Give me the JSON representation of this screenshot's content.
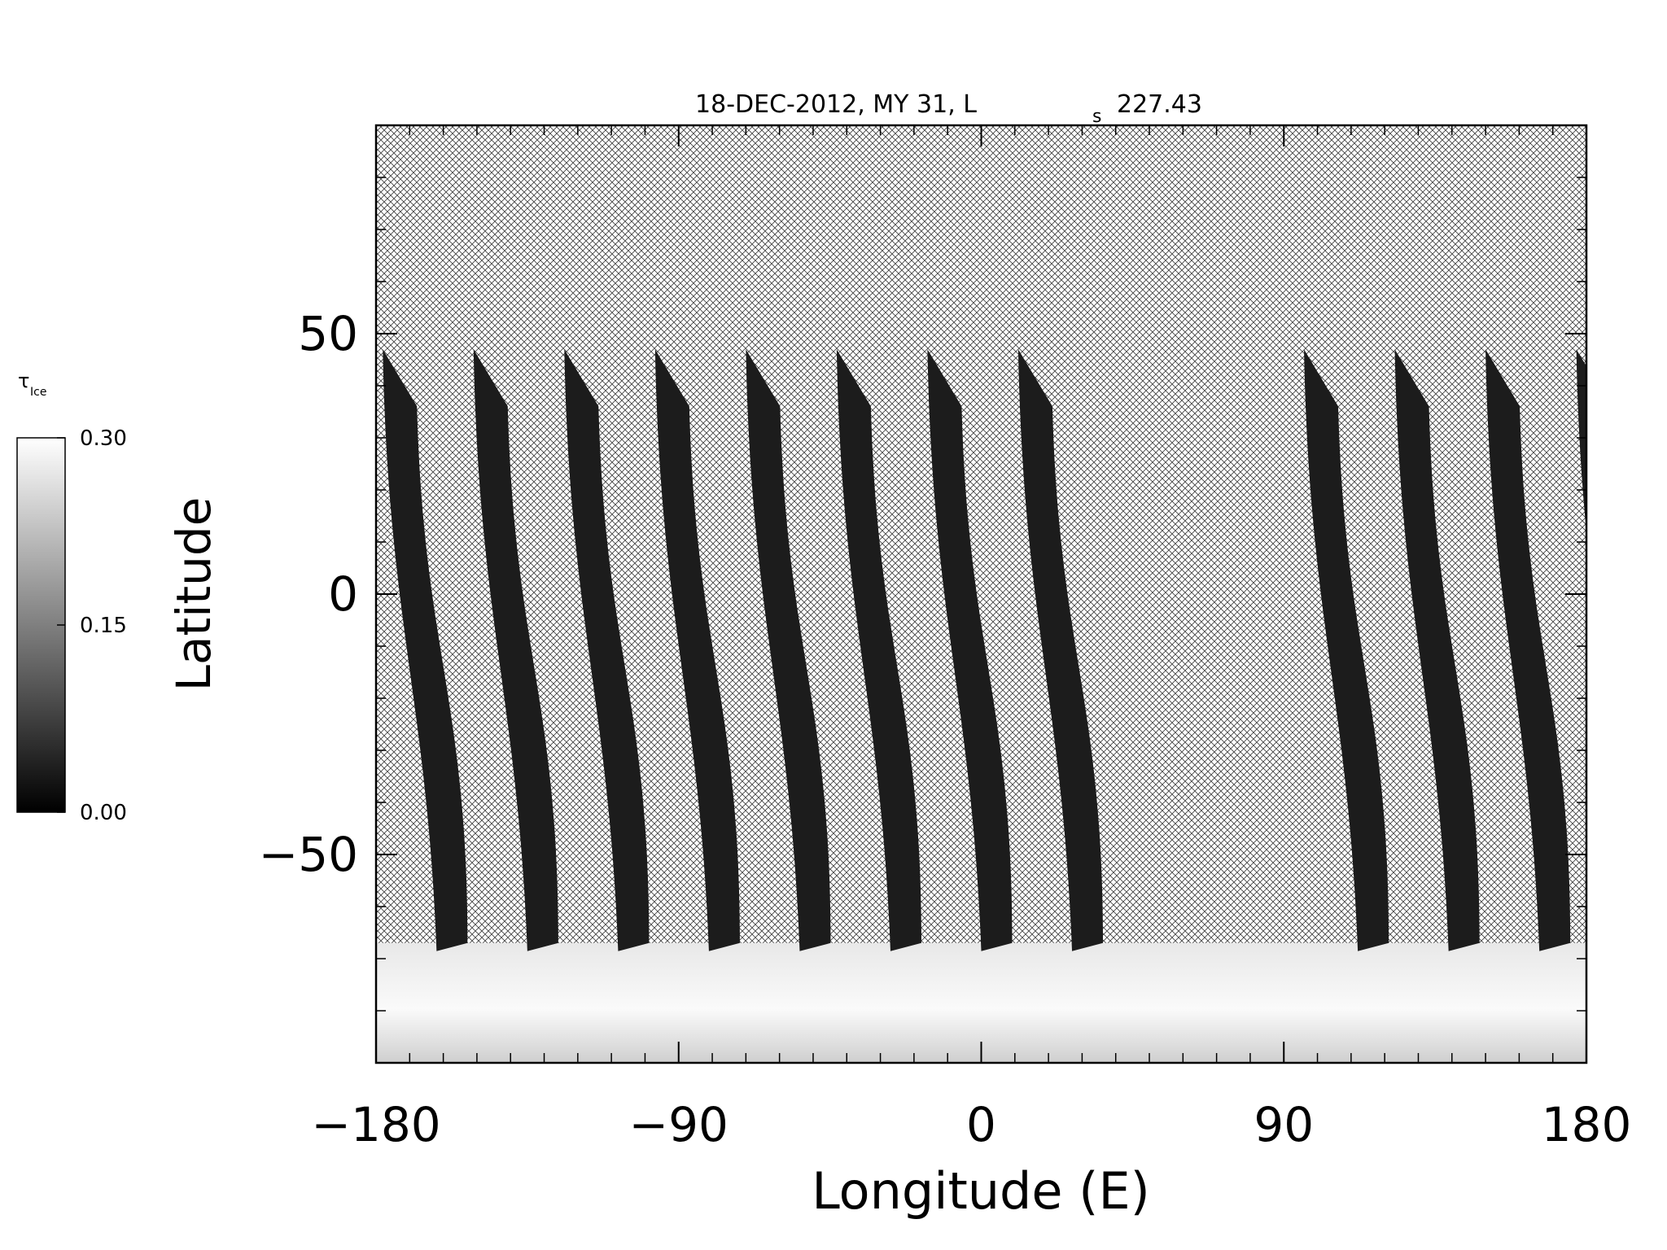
{
  "chart_data": {
    "type": "heatmap",
    "title": {
      "main": "18-DEC-2012, MY 31,  L",
      "subscript": "s",
      "value": "227.43"
    },
    "xlabel": "Longitude (E)",
    "ylabel": "Latitude",
    "xlim": [
      -180,
      180
    ],
    "ylim": [
      -90,
      90
    ],
    "x_ticks": [
      -180,
      -90,
      0,
      90,
      180
    ],
    "x_tick_labels": [
      "−180",
      "−90",
      "0",
      "90",
      "180"
    ],
    "y_ticks": [
      -50,
      0,
      50
    ],
    "y_tick_labels": [
      "−50",
      "0",
      "50"
    ],
    "colorbar": {
      "label_symbol": "τ",
      "label_subscript": "Ice",
      "min": 0.0,
      "max": 0.3,
      "tick_values": [
        0.0,
        0.15,
        0.3
      ],
      "tick_labels": [
        "0.00",
        "0.15",
        "0.30"
      ],
      "colormap": "grayscale"
    },
    "grid": false,
    "missing_data_pattern": "crosshatch",
    "swaths": [
      {
        "lon_top": -178,
        "lon_bottom": -162,
        "lat_top": 47,
        "lat_bottom": -67
      },
      {
        "lon_top": -151,
        "lon_bottom": -135,
        "lat_top": 47,
        "lat_bottom": -67
      },
      {
        "lon_top": -124,
        "lon_bottom": -108,
        "lat_top": 47,
        "lat_bottom": -67
      },
      {
        "lon_top": -97,
        "lon_bottom": -81,
        "lat_top": 47,
        "lat_bottom": -67
      },
      {
        "lon_top": -70,
        "lon_bottom": -54,
        "lat_top": 47,
        "lat_bottom": -67
      },
      {
        "lon_top": -43,
        "lon_bottom": -27,
        "lat_top": 47,
        "lat_bottom": -67
      },
      {
        "lon_top": -16,
        "lon_bottom": 0,
        "lat_top": 47,
        "lat_bottom": -67
      },
      {
        "lon_top": 11,
        "lon_bottom": 27,
        "lat_top": 47,
        "lat_bottom": -67
      },
      {
        "lon_top": 96,
        "lon_bottom": 112,
        "lat_top": 47,
        "lat_bottom": -67
      },
      {
        "lon_top": 123,
        "lon_bottom": 139,
        "lat_top": 47,
        "lat_bottom": -67
      },
      {
        "lon_top": 150,
        "lon_bottom": 166,
        "lat_top": 47,
        "lat_bottom": -67
      },
      {
        "lon_top": 177,
        "lon_bottom": 193,
        "lat_top": 47,
        "lat_bottom": -67
      }
    ],
    "polar_band": {
      "lat_top": -67,
      "lat_bottom": -90,
      "value": 0.3
    }
  }
}
